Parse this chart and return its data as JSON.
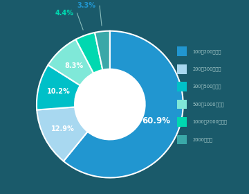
{
  "labels": [
    "100～200株未満",
    "200～300株未満",
    "300～500株未満",
    "500～1000株未満",
    "1000～2000株未満",
    "2000株以上"
  ],
  "values": [
    60.9,
    12.9,
    10.2,
    8.3,
    4.4,
    3.3
  ],
  "colors": [
    "#2196d0",
    "#a8d8f0",
    "#00c0c8",
    "#7fe8d8",
    "#00d8b0",
    "#3aa8a8"
  ],
  "pct_labels": [
    "60.9%",
    "12.9%",
    "10.2%",
    "8.3%",
    "4.4%",
    "3.3%"
  ],
  "background_color": "#1a5a6a",
  "legend_text_color": "#aacccc",
  "start_angle": 90
}
